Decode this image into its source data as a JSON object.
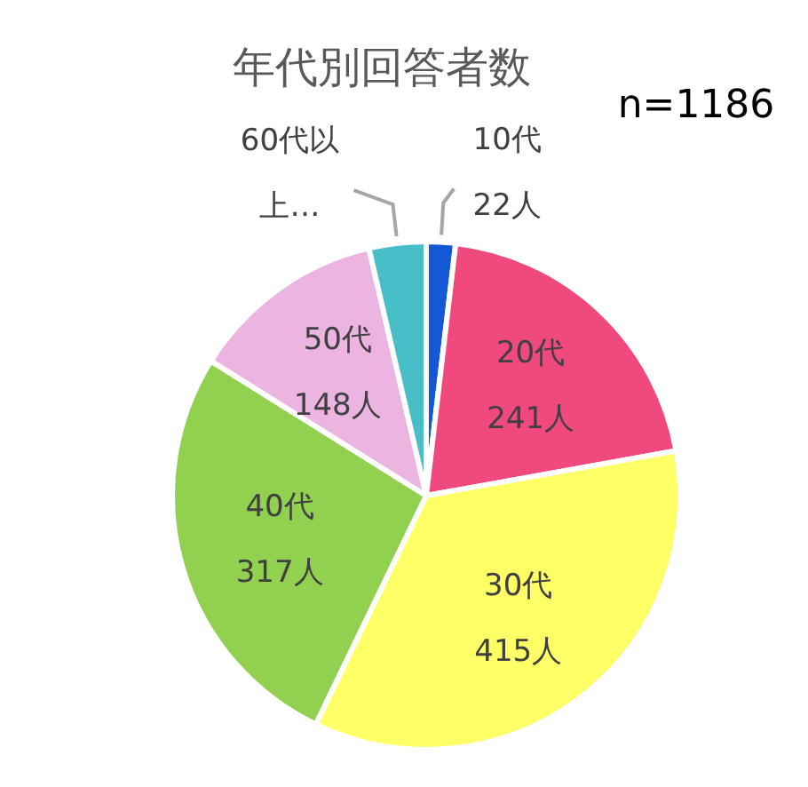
{
  "chart_data": {
    "type": "pie",
    "title": "年代別回答者数",
    "subtitle": "n=1186",
    "categories": [
      "10代",
      "20代",
      "30代",
      "40代",
      "50代",
      "60代以上…"
    ],
    "values": [
      22,
      241,
      415,
      317,
      148,
      43
    ],
    "value_labels": [
      "22人",
      "241人",
      "415人",
      "317人",
      "148人",
      null
    ],
    "colors": [
      "#1558d6",
      "#f0497d",
      "#ffff66",
      "#92d050",
      "#ecb4e0",
      "#48bfc8"
    ],
    "legend": false
  }
}
